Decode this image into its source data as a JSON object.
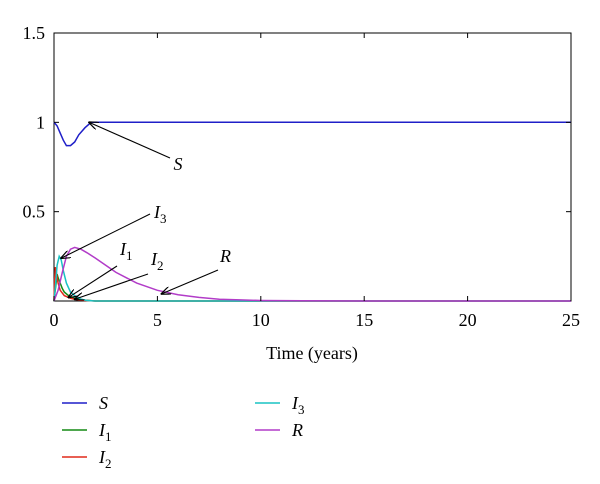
{
  "chart_data": {
    "type": "line",
    "title": "",
    "xlabel": "Time (years)",
    "ylabel": "",
    "xlim": [
      0,
      25
    ],
    "ylim": [
      0,
      1.5
    ],
    "x_ticks": [
      "0",
      "5",
      "10",
      "15",
      "20",
      "25"
    ],
    "y_ticks": [
      "0.5",
      "1",
      "1.5"
    ],
    "grid": false,
    "legend_position": "below-left",
    "series": [
      {
        "name": "S",
        "sub": "",
        "color": "#1f1fc8",
        "x": [
          0,
          0.15,
          0.3,
          0.45,
          0.6,
          0.8,
          1.0,
          1.2,
          1.5,
          1.8,
          2.2,
          3,
          5,
          10,
          15,
          20,
          25
        ],
        "y": [
          1.0,
          0.98,
          0.94,
          0.9,
          0.87,
          0.87,
          0.89,
          0.93,
          0.97,
          1.0,
          1.0,
          1.0,
          1.0,
          1.0,
          1.0,
          1.0,
          1.0
        ]
      },
      {
        "name": "I",
        "sub": "1",
        "color": "#138a13",
        "x": [
          0,
          0.05,
          0.1,
          0.15,
          0.2,
          0.3,
          0.4,
          0.5,
          0.7,
          1.0,
          1.5,
          2,
          25
        ],
        "y": [
          0,
          0.05,
          0.1,
          0.15,
          0.13,
          0.1,
          0.07,
          0.05,
          0.03,
          0.015,
          0.005,
          0,
          0
        ]
      },
      {
        "name": "I",
        "sub": "2",
        "color": "#e02a1a",
        "x": [
          0,
          0.03,
          0.07,
          0.1,
          0.15,
          0.2,
          0.3,
          0.5,
          0.8,
          1.2,
          2,
          25
        ],
        "y": [
          0,
          0.12,
          0.19,
          0.17,
          0.13,
          0.1,
          0.06,
          0.03,
          0.015,
          0.005,
          0,
          0
        ]
      },
      {
        "name": "I",
        "sub": "3",
        "color": "#19c3c3",
        "x": [
          0,
          0.08,
          0.15,
          0.25,
          0.35,
          0.45,
          0.6,
          0.8,
          1.0,
          1.3,
          1.6,
          2,
          25
        ],
        "y": [
          0,
          0.1,
          0.2,
          0.25,
          0.23,
          0.17,
          0.1,
          0.05,
          0.03,
          0.01,
          0.003,
          0,
          0
        ]
      },
      {
        "name": "R",
        "sub": "",
        "color": "#b23cc8",
        "x": [
          0,
          0.2,
          0.4,
          0.6,
          0.8,
          1.0,
          1.3,
          1.6,
          2,
          2.5,
          3,
          4,
          5,
          6,
          7,
          8,
          9,
          10,
          12,
          15,
          20,
          25
        ],
        "y": [
          0,
          0.06,
          0.16,
          0.25,
          0.29,
          0.3,
          0.29,
          0.27,
          0.24,
          0.2,
          0.16,
          0.1,
          0.06,
          0.035,
          0.02,
          0.01,
          0.006,
          0.003,
          0.001,
          0,
          0,
          0
        ]
      }
    ],
    "annotations": [
      {
        "name": "S",
        "sub": "",
        "tip": [
          1.7,
          1.0
        ]
      },
      {
        "name": "I",
        "sub": "3",
        "tip": [
          0.35,
          0.24
        ]
      },
      {
        "name": "I",
        "sub": "1",
        "tip": [
          0.7,
          0.02
        ]
      },
      {
        "name": "I",
        "sub": "2",
        "tip": [
          1.0,
          0.01
        ]
      },
      {
        "name": "R",
        "sub": "",
        "tip": [
          5.2,
          0.04
        ]
      }
    ]
  }
}
